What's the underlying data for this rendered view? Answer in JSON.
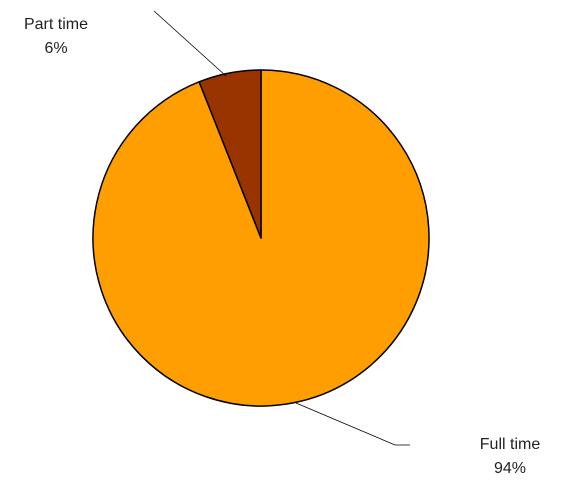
{
  "chart_data": {
    "type": "pie",
    "title": "",
    "slices": [
      {
        "name": "Full time",
        "value": 94,
        "label": "94%",
        "color": "#FF9E00"
      },
      {
        "name": "Part time",
        "value": 6,
        "label": "6%",
        "color": "#993300"
      }
    ],
    "start_angle_deg": 0,
    "direction": "clockwise",
    "legend": "none",
    "data_labels": "outside-with-leader-lines",
    "border_color": "#000000"
  }
}
